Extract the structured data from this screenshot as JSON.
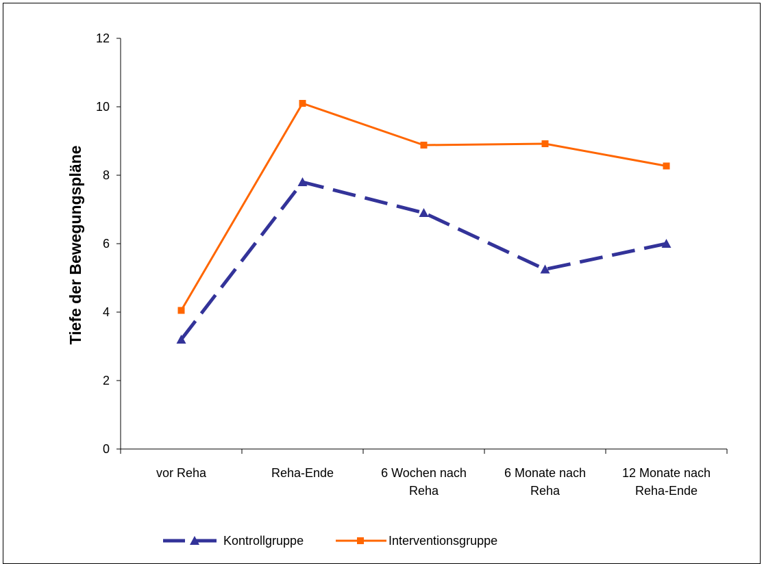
{
  "chart_data": {
    "type": "line",
    "title": "",
    "xlabel": "",
    "ylabel": "Tiefe der Bewegungspläne",
    "ylim": [
      0,
      12
    ],
    "yticks": [
      0,
      2,
      4,
      6,
      8,
      10,
      12
    ],
    "categories": [
      [
        "vor Reha"
      ],
      [
        "Reha-Ende"
      ],
      [
        "6 Wochen nach",
        "Reha"
      ],
      [
        "6 Monate nach",
        "Reha"
      ],
      [
        "12 Monate nach",
        "Reha-Ende"
      ]
    ],
    "grid": false,
    "legend_position": "bottom",
    "series": [
      {
        "name": "Kontrollgruppe",
        "values": [
          3.2,
          7.8,
          6.9,
          5.25,
          6.0
        ],
        "color": "#333399",
        "line_style": "dashed",
        "marker": "triangle"
      },
      {
        "name": "Interventionsgruppe",
        "values": [
          4.05,
          10.1,
          8.88,
          8.92,
          8.27
        ],
        "color": "#ff6600",
        "line_style": "solid",
        "marker": "square"
      }
    ]
  }
}
